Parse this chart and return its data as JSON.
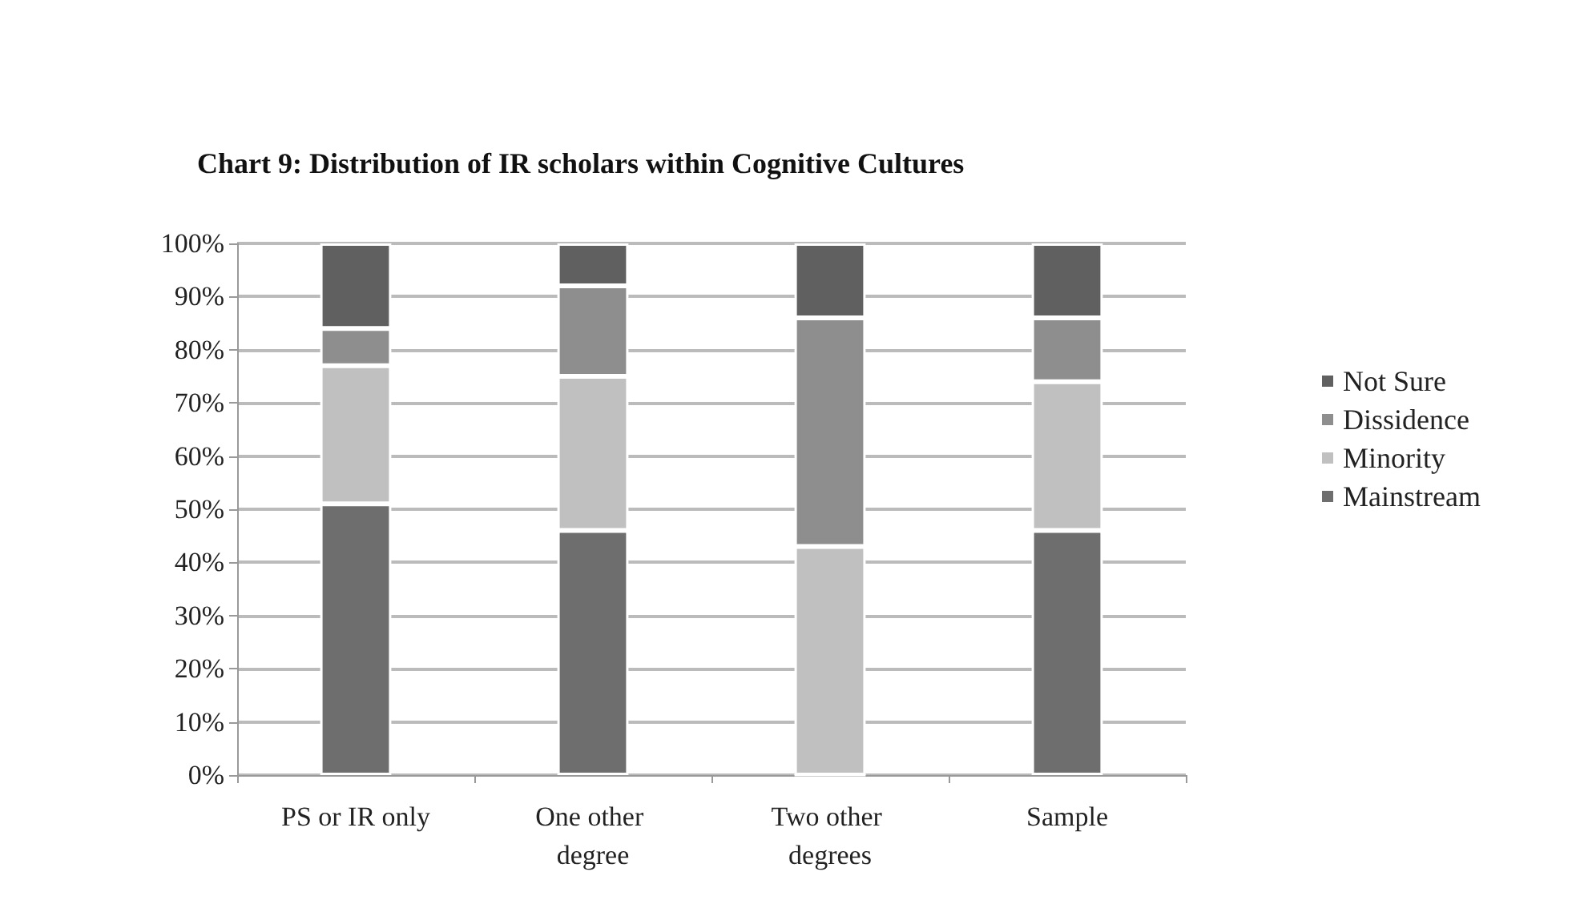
{
  "chart_data": {
    "type": "bar",
    "title": "Chart 9: Distribution of IR scholars within Cognitive Cultures",
    "categories": [
      "PS or IR only",
      "One other degree",
      "Two other degrees",
      "Sample"
    ],
    "stacked": true,
    "series": [
      {
        "name": "Mainstream",
        "color": "#6e6e6e",
        "values": [
          51,
          46,
          0,
          46
        ]
      },
      {
        "name": "Minority",
        "color": "#c0c0c0",
        "values": [
          26,
          29,
          43,
          28
        ]
      },
      {
        "name": "Dissidence",
        "color": "#8e8e8e",
        "values": [
          7,
          17,
          43,
          12
        ]
      },
      {
        "name": "Not Sure",
        "color": "#606060",
        "values": [
          16,
          8,
          14,
          14
        ]
      }
    ],
    "ylim": [
      0,
      100
    ],
    "yticks": [
      {
        "value": 0,
        "label": "0%"
      },
      {
        "value": 10,
        "label": "10%"
      },
      {
        "value": 20,
        "label": "20%"
      },
      {
        "value": 30,
        "label": "30%"
      },
      {
        "value": 40,
        "label": "40%"
      },
      {
        "value": 50,
        "label": "50%"
      },
      {
        "value": 60,
        "label": "60%"
      },
      {
        "value": 70,
        "label": "70%"
      },
      {
        "value": 80,
        "label": "80%"
      },
      {
        "value": 90,
        "label": "90%"
      },
      {
        "value": 100,
        "label": "100%"
      }
    ],
    "grid": "y",
    "legend": "right"
  }
}
